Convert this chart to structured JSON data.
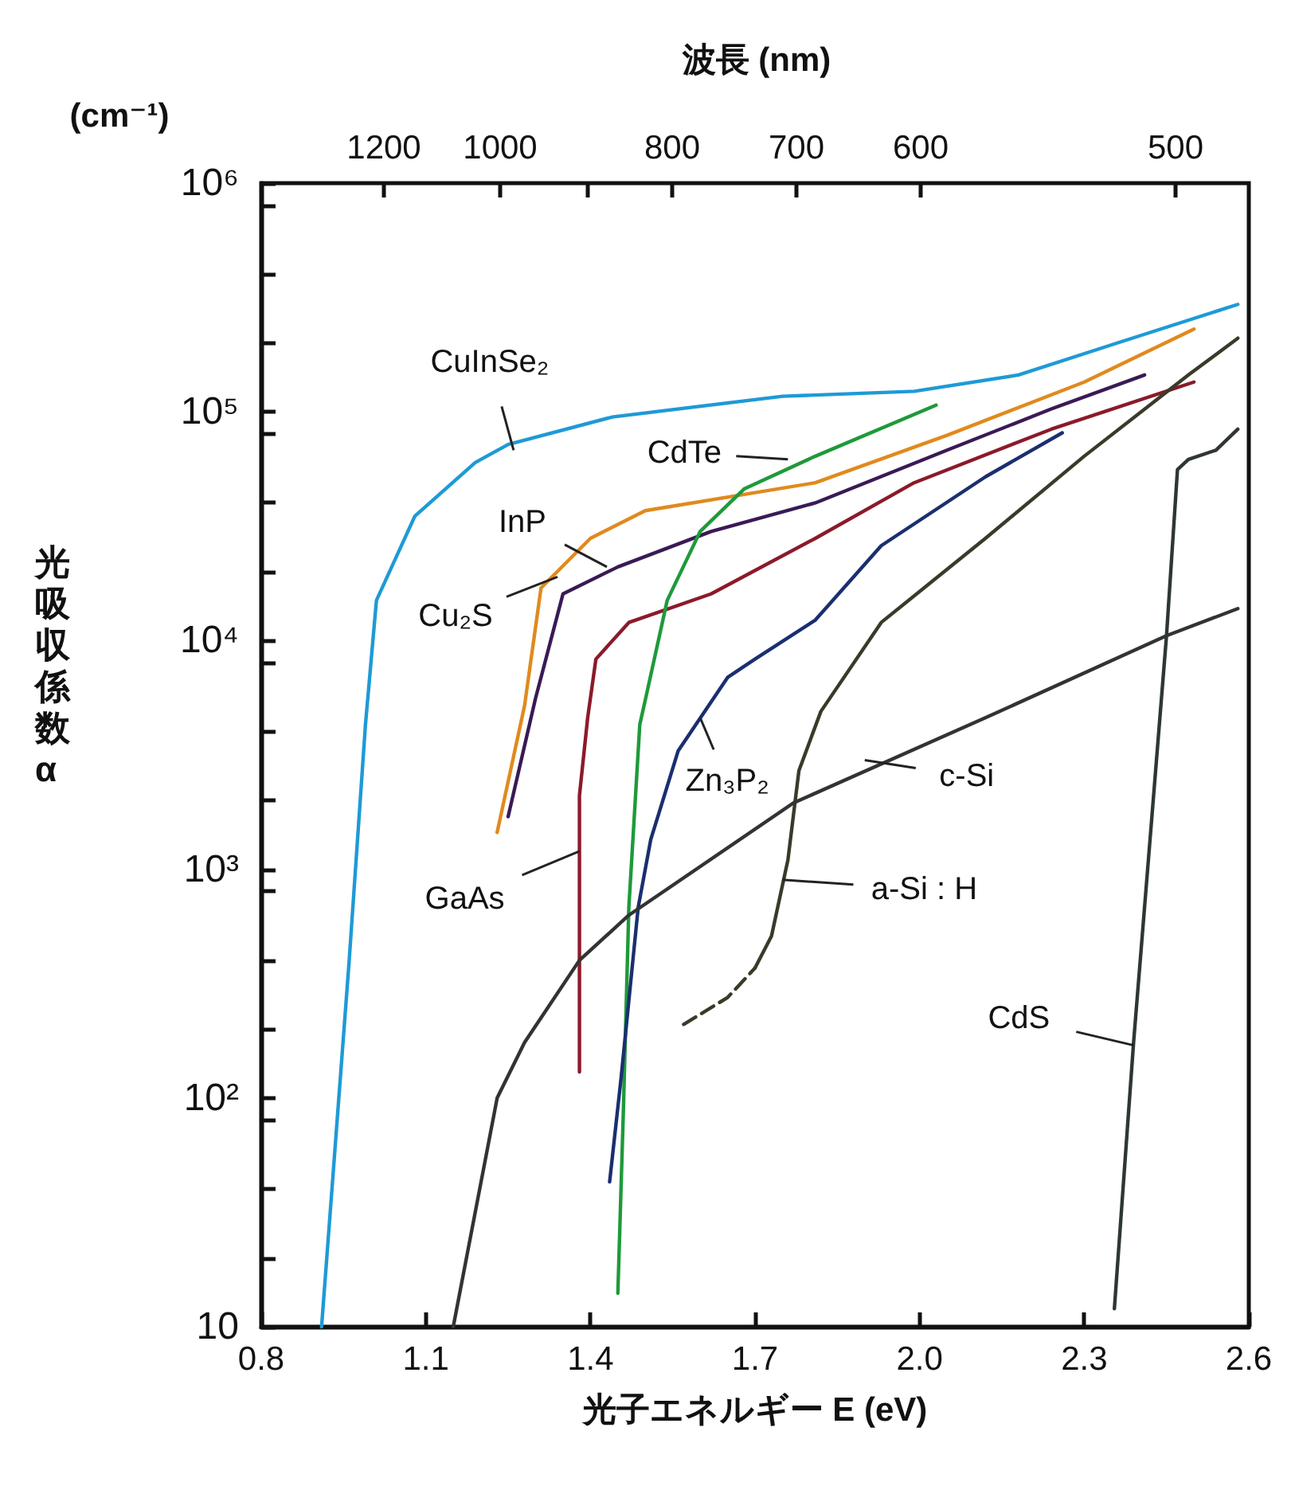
{
  "chart_data": {
    "type": "line",
    "xlabel": "光子エネルギー E (eV)",
    "ylabel": "光吸収係数α",
    "log": "y",
    "grid": false,
    "marker": "none",
    "xlim": [
      0.8,
      2.6
    ],
    "xticks": [
      {
        "value": 0.8,
        "label": "0.8"
      },
      {
        "value": 1.1,
        "label": "1.1"
      },
      {
        "value": 1.4,
        "label": "1.4"
      },
      {
        "value": 1.7,
        "label": "1.7"
      },
      {
        "value": 2.0,
        "label": "2.0"
      },
      {
        "value": 2.3,
        "label": "2.3"
      },
      {
        "value": 2.6,
        "label": "2.6"
      }
    ],
    "ylim": [
      10,
      1000000
    ],
    "yticks": [
      {
        "value": 10,
        "label": "10"
      },
      {
        "value": 20,
        "label": null
      },
      {
        "value": 40,
        "label": null
      },
      {
        "value": 80,
        "label": null
      },
      {
        "value": 100,
        "label": "10²"
      },
      {
        "value": 200,
        "label": null
      },
      {
        "value": 400,
        "label": null
      },
      {
        "value": 800,
        "label": null
      },
      {
        "value": 1000,
        "label": "10³"
      },
      {
        "value": 2000,
        "label": null
      },
      {
        "value": 4000,
        "label": null
      },
      {
        "value": 8000,
        "label": null
      },
      {
        "value": 10000,
        "label": "10⁴"
      },
      {
        "value": 20000,
        "label": null
      },
      {
        "value": 40000,
        "label": null
      },
      {
        "value": 80000,
        "label": null
      },
      {
        "value": 100000,
        "label": "10⁵"
      },
      {
        "value": 200000,
        "label": null
      },
      {
        "value": 400000,
        "label": null
      },
      {
        "value": 800000,
        "label": null
      },
      {
        "value": 1000000,
        "label": "10⁶"
      }
    ],
    "series": [
      {
        "color": "#1e9ad6",
        "x": [
          0.91,
          0.96,
          0.99,
          1.01,
          1.08,
          1.19,
          1.25,
          1.44,
          1.75,
          1.99,
          2.18,
          2.36,
          2.58
        ],
        "values": [
          10,
          390,
          4300,
          15000,
          35000,
          60000,
          72000,
          95000,
          117000,
          123000,
          145000,
          200000,
          295000
        ]
      },
      {
        "color": "#e08a1e",
        "x": [
          1.23,
          1.28,
          1.31,
          1.4,
          1.5,
          1.81,
          2.05,
          2.3,
          2.5
        ],
        "values": [
          1450,
          5200,
          17000,
          28000,
          37000,
          49000,
          79000,
          135000,
          230000
        ]
      },
      {
        "color": "#3a1a55",
        "x": [
          1.25,
          1.3,
          1.35,
          1.45,
          1.62,
          1.81,
          2.05,
          2.24,
          2.41
        ],
        "values": [
          1700,
          5600,
          16000,
          21000,
          30000,
          40000,
          68000,
          103000,
          145000
        ]
      },
      {
        "color": "#8b1a2a",
        "x": [
          1.38,
          1.38,
          1.38,
          1.395,
          1.41,
          1.47,
          1.62,
          1.81,
          1.99,
          2.24,
          2.5
        ],
        "values": [
          130,
          680,
          2100,
          4600,
          8300,
          12000,
          16000,
          28000,
          49000,
          84000,
          135000
        ]
      },
      {
        "color": "#1e9a3a",
        "x": [
          1.45,
          1.46,
          1.47,
          1.49,
          1.5,
          1.54,
          1.6,
          1.68,
          1.81,
          2.03
        ],
        "values": [
          14,
          87,
          680,
          4300,
          5500,
          15000,
          30000,
          46000,
          64000,
          107000
        ]
      },
      {
        "color": "#1a2f70",
        "x": [
          1.435,
          1.456,
          1.487,
          1.51,
          1.56,
          1.65,
          1.7,
          1.81,
          1.93,
          2.12,
          2.26
        ],
        "values": [
          43,
          123,
          680,
          1350,
          3300,
          6900,
          8300,
          12300,
          26000,
          52000,
          81000
        ]
      },
      {
        "color": "#3b3a2a",
        "line_style": "dashed",
        "x": [
          1.57,
          1.65,
          1.7
        ],
        "values": [
          210,
          275,
          370
        ]
      },
      {
        "color": "#3b3a2a",
        "x": [
          1.7,
          1.73,
          1.76,
          1.78,
          1.82,
          1.93,
          2.12,
          2.3,
          2.49,
          2.58
        ],
        "values": [
          370,
          510,
          1100,
          2700,
          4900,
          12000,
          28000,
          64000,
          145000,
          210000
        ]
      },
      {
        "color": "#333333",
        "x": [
          1.15,
          1.23,
          1.28,
          1.38,
          1.47,
          1.77,
          2.12,
          2.45,
          2.58
        ],
        "values": [
          10,
          100,
          175,
          400,
          630,
          1950,
          4600,
          10500,
          13800
        ]
      },
      {
        "color": "#2f3636",
        "x": [
          2.355,
          2.39,
          2.42,
          2.45,
          2.47,
          2.49,
          2.54,
          2.58
        ],
        "values": [
          12,
          175,
          1350,
          10500,
          56000,
          62000,
          68000,
          84000
        ]
      }
    ],
    "annotations": [
      "(cm⁻¹)",
      "波長 (nm)",
      "1200",
      "1000",
      "800",
      "700",
      "600",
      "500",
      {
        "text": "CuInSe₂",
        "x": 1.26,
        "y": 68000
      },
      {
        "text": "CdTe",
        "x": 1.76,
        "y": 62000
      },
      {
        "text": "InP",
        "x": 1.43,
        "y": 21000
      },
      {
        "text": "Cu₂S",
        "x": 1.34,
        "y": 19000
      },
      {
        "text": "GaAs",
        "x": 1.38,
        "y": 1200
      },
      {
        "text": "Zn₃P₂",
        "x": 1.6,
        "y": 4600
      },
      {
        "text": "c-Si",
        "x": 1.9,
        "y": 3000
      },
      {
        "text": "a-Si : H",
        "x": 1.75,
        "y": 900
      },
      {
        "text": "CdS",
        "x": 2.39,
        "y": 170
      }
    ]
  }
}
